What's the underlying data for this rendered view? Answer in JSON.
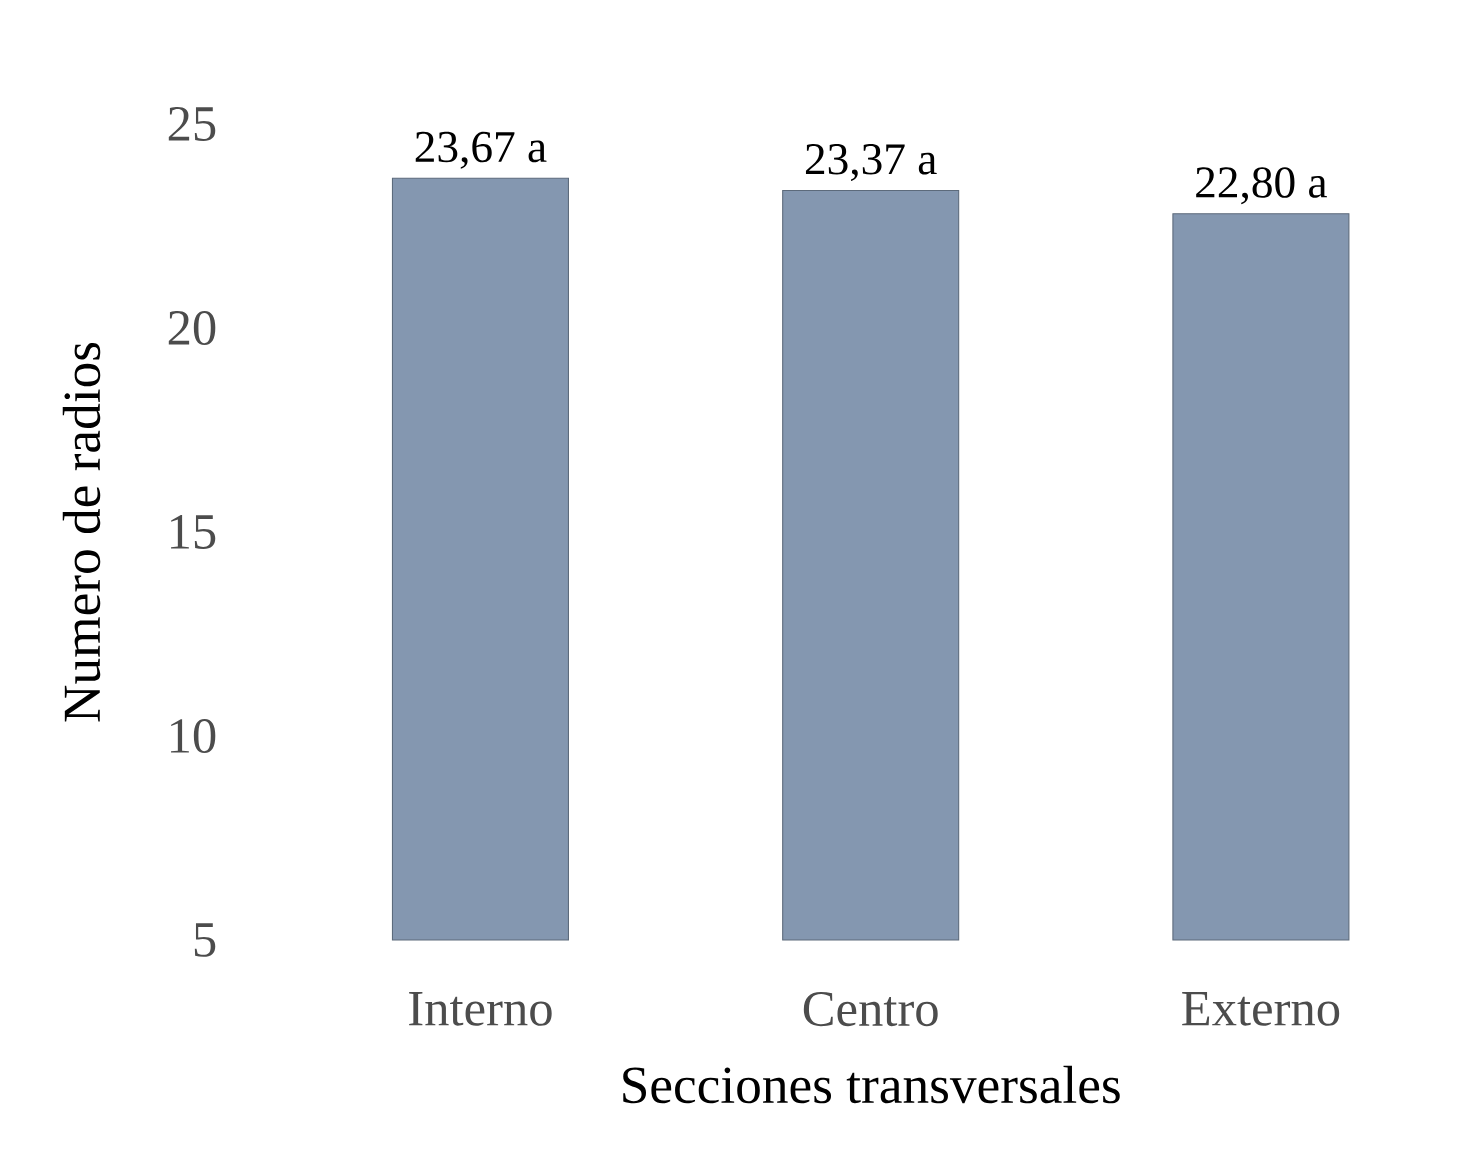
{
  "chart_data": {
    "type": "bar",
    "xlabel": "Secciones transversales",
    "ylabel": "Numero de radios",
    "categories": [
      "Interno",
      "Centro",
      "Externo"
    ],
    "values": [
      23.67,
      23.37,
      22.8
    ],
    "color": "#8497b0",
    "value_labels": [
      "23,67 a",
      "23,37 a",
      "22,80 a"
    ],
    "ylim": [
      5,
      25
    ],
    "yticks": [
      5,
      10,
      15,
      20,
      25
    ],
    "grid": false
  }
}
